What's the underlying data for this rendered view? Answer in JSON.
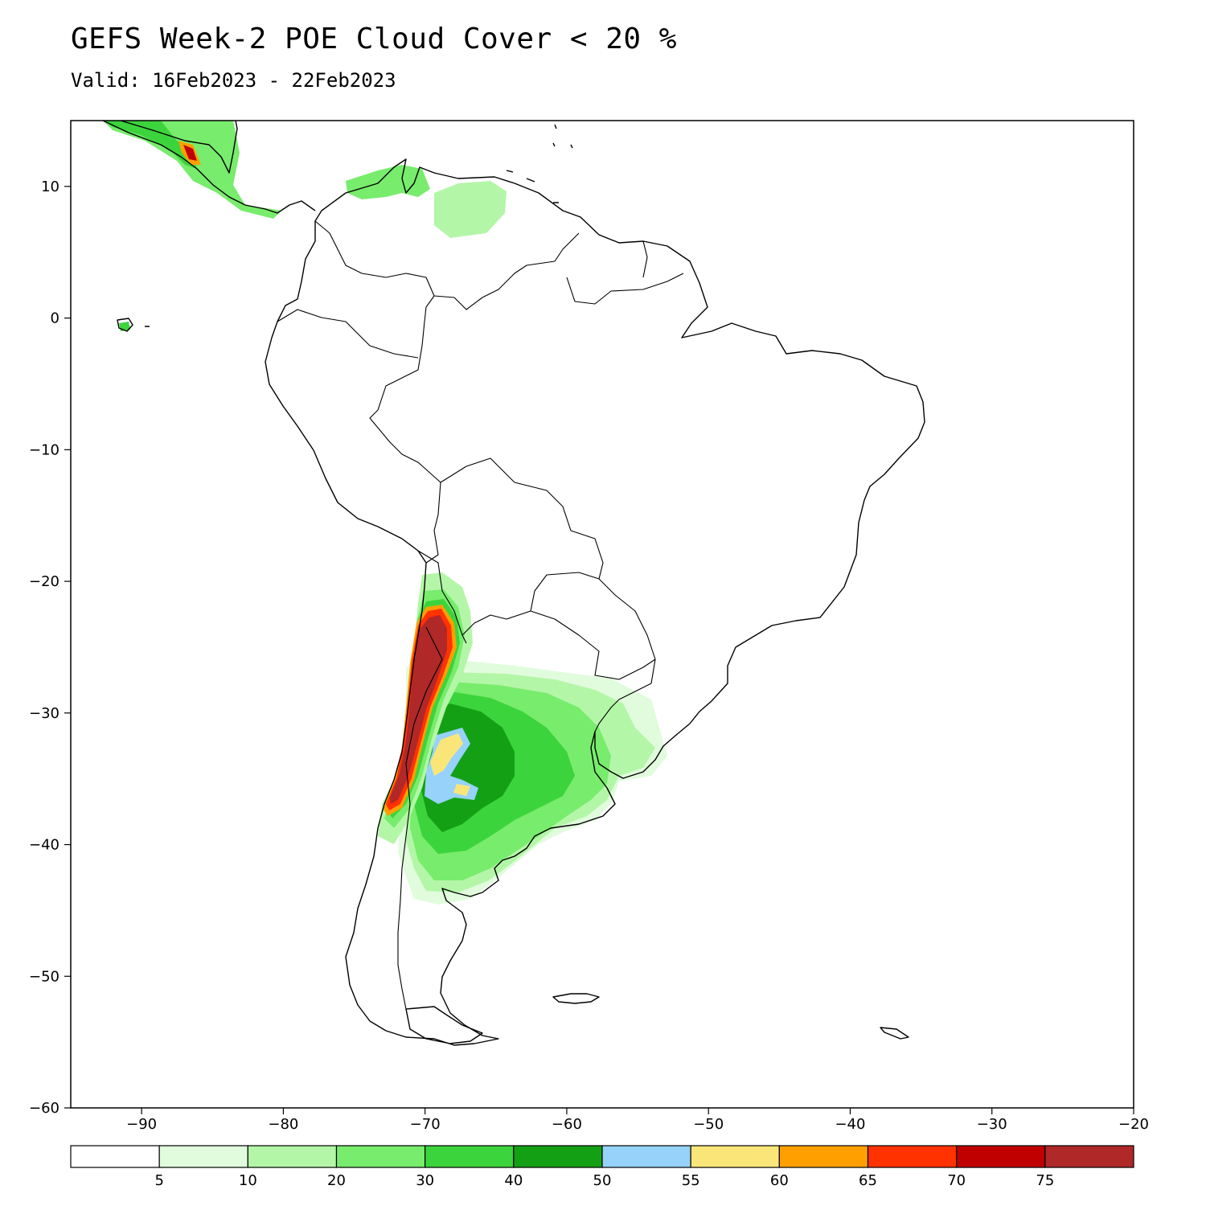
{
  "title": "GEFS Week-2 POE Cloud Cover < 20 %",
  "subtitle": "Valid: 16Feb2023 - 22Feb2023",
  "map": {
    "lon_range": [
      -95,
      -20
    ],
    "lat_range": [
      -60,
      15
    ],
    "x_ticks": [
      {
        "value": -90,
        "label": "-90"
      },
      {
        "value": -80,
        "label": "-80"
      },
      {
        "value": -70,
        "label": "-70"
      },
      {
        "value": -60,
        "label": "-60"
      },
      {
        "value": -50,
        "label": "-50"
      },
      {
        "value": -40,
        "label": "-40"
      },
      {
        "value": -30,
        "label": "-30"
      },
      {
        "value": -20,
        "label": "-20"
      }
    ],
    "y_ticks": [
      {
        "value": 10,
        "label": "10"
      },
      {
        "value": 0,
        "label": "0"
      },
      {
        "value": -10,
        "label": "-10"
      },
      {
        "value": -20,
        "label": "-20"
      },
      {
        "value": -30,
        "label": "-30"
      },
      {
        "value": -40,
        "label": "-40"
      },
      {
        "value": -50,
        "label": "-50"
      },
      {
        "value": -60,
        "label": "-60"
      }
    ]
  },
  "colorbar": {
    "colors": [
      "#ffffff",
      "#e0fcdc",
      "#b4f6a8",
      "#78ec6c",
      "#3cd43c",
      "#14a014",
      "#96d2fa",
      "#fae678",
      "#ffa000",
      "#ff3200",
      "#c00000",
      "#b02828"
    ],
    "labels": [
      "5",
      "10",
      "20",
      "30",
      "40",
      "50",
      "55",
      "60",
      "65",
      "70",
      "75"
    ]
  },
  "fields": {
    "colors": {
      "c5": "#e0fcdc",
      "c10": "#b4f6a8",
      "c20": "#78ec6c",
      "c30": "#3cd43c",
      "c40": "#14a014",
      "c50": "#96d2fa",
      "c55": "#fae678",
      "c60": "#ffa000",
      "c65": "#ff3200",
      "c70": "#c00000",
      "c75": "#b02828"
    }
  }
}
